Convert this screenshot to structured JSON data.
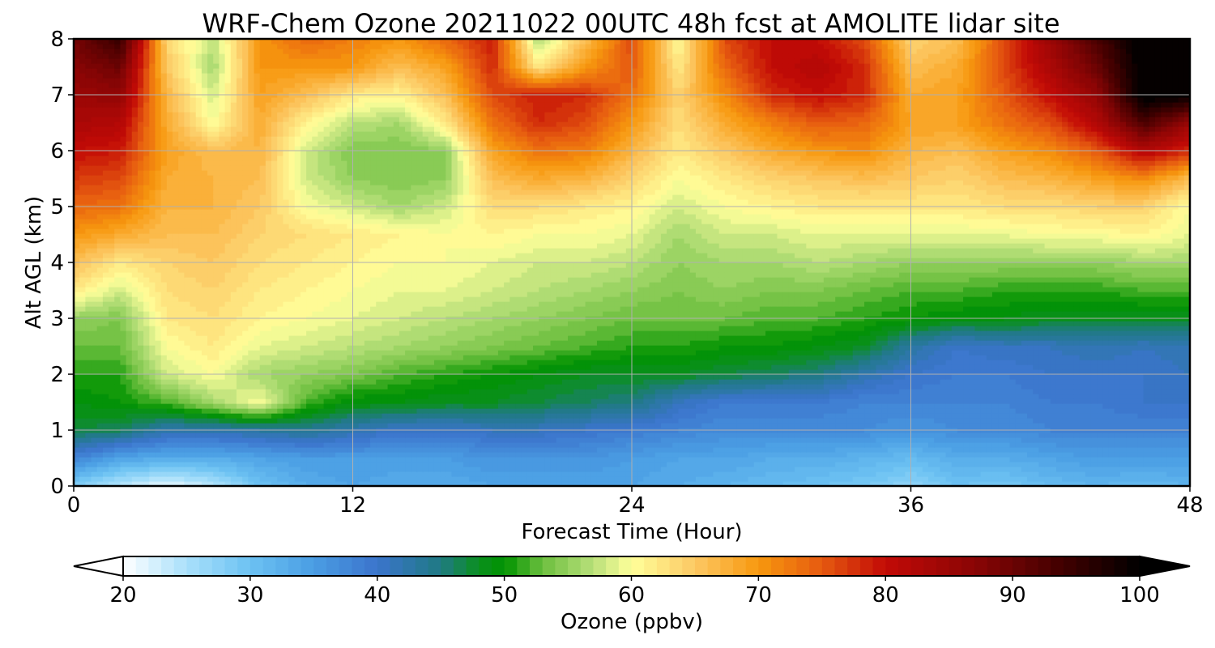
{
  "chart_data": {
    "type": "heatmap",
    "title": "WRF-Chem Ozone  20211022 00UTC 48h fcst at AMOLITE lidar site",
    "xlabel": "Forecast Time (Hour)",
    "ylabel": "Alt AGL (km)",
    "xlim": [
      0,
      48
    ],
    "ylim": [
      0,
      8
    ],
    "xticks": [
      0,
      12,
      24,
      36,
      48
    ],
    "yticks": [
      0,
      1,
      2,
      3,
      4,
      5,
      6,
      7,
      8
    ],
    "grid": true,
    "x": [
      0,
      2,
      4,
      6,
      8,
      10,
      12,
      14,
      16,
      18,
      20,
      22,
      24,
      26,
      28,
      30,
      32,
      34,
      36,
      38,
      40,
      42,
      44,
      46,
      48
    ],
    "y": [
      0,
      0.5,
      1,
      1.5,
      2,
      2.5,
      3,
      3.5,
      4,
      4.5,
      5,
      5.5,
      6,
      6.5,
      7,
      7.5,
      8
    ],
    "z": [
      [
        28,
        24,
        21,
        24,
        30,
        33,
        34,
        33,
        33,
        34,
        34,
        34,
        34,
        33,
        32,
        31,
        30,
        29,
        27,
        30,
        29,
        31,
        32,
        31,
        32
      ],
      [
        38,
        34,
        33,
        33,
        34,
        35,
        35,
        35,
        35,
        36,
        36,
        36,
        35,
        34,
        34,
        33,
        33,
        32,
        31,
        33,
        33,
        34,
        35,
        35,
        35
      ],
      [
        47,
        46,
        42,
        42,
        43,
        44,
        42,
        40,
        40,
        41,
        41,
        40,
        39,
        38,
        37,
        37,
        37,
        37,
        36,
        37,
        37,
        38,
        38,
        38,
        38
      ],
      [
        49,
        50,
        52,
        56,
        60,
        52,
        49,
        49,
        48,
        48,
        47,
        46,
        45,
        41,
        39,
        39,
        39,
        38,
        38,
        38,
        38,
        39,
        39,
        40,
        40
      ],
      [
        51,
        51,
        58,
        60,
        56,
        55,
        54,
        52,
        51,
        50,
        49,
        48,
        48,
        48,
        47,
        46,
        45,
        42,
        40,
        39,
        39,
        40,
        40,
        40,
        41
      ],
      [
        53,
        53,
        60,
        62,
        59,
        58,
        57,
        56,
        55,
        54,
        53,
        52,
        51,
        51,
        50,
        50,
        49,
        48,
        43,
        40,
        41,
        41,
        42,
        41,
        42
      ],
      [
        55,
        54,
        62,
        63,
        61,
        60,
        59,
        58,
        57,
        56,
        55,
        54,
        53,
        53,
        53,
        52,
        52,
        51,
        50,
        49,
        49,
        48,
        48,
        48,
        48
      ],
      [
        62,
        58,
        63,
        64,
        62,
        61,
        60,
        59,
        59,
        58,
        57,
        56,
        55,
        54,
        55,
        54,
        54,
        53,
        52,
        52,
        51,
        51,
        51,
        52,
        52
      ],
      [
        66,
        62,
        64,
        65,
        63,
        62,
        61,
        60,
        60,
        59,
        58,
        58,
        57,
        55,
        56,
        56,
        57,
        56,
        55,
        55,
        55,
        55,
        55,
        56,
        56
      ],
      [
        70,
        68,
        66,
        66,
        64,
        63,
        62,
        61,
        60,
        61,
        60,
        60,
        59,
        56,
        58,
        58,
        59,
        59,
        59,
        59,
        59,
        60,
        60,
        61,
        59
      ],
      [
        74,
        73,
        67,
        67,
        65,
        60,
        58,
        56,
        58,
        63,
        63,
        62,
        61,
        58,
        60,
        61,
        62,
        62,
        62,
        62,
        63,
        63,
        64,
        64,
        60
      ],
      [
        77,
        76,
        68,
        67,
        66,
        58,
        55,
        54,
        55,
        66,
        68,
        67,
        64,
        60,
        62,
        64,
        65,
        66,
        65,
        64,
        66,
        67,
        69,
        71,
        66
      ],
      [
        80,
        79,
        69,
        66,
        67,
        58,
        54,
        54,
        55,
        69,
        73,
        72,
        67,
        62,
        65,
        68,
        70,
        71,
        67,
        66,
        69,
        71,
        75,
        82,
        78
      ],
      [
        83,
        82,
        68,
        60,
        68,
        61,
        57,
        56,
        62,
        73,
        78,
        76,
        70,
        63,
        68,
        72,
        75,
        74,
        69,
        69,
        73,
        76,
        82,
        93,
        85
      ],
      [
        85,
        86,
        67,
        58,
        69,
        66,
        62,
        61,
        66,
        76,
        79,
        78,
        73,
        64,
        71,
        78,
        80,
        78,
        68,
        69,
        75,
        80,
        86,
        101,
        100
      ],
      [
        87,
        90,
        65,
        56,
        70,
        70,
        70,
        66,
        69,
        78,
        62,
        70,
        75,
        62,
        74,
        80,
        82,
        78,
        66,
        68,
        76,
        83,
        90,
        101,
        101
      ],
      [
        89,
        95,
        64,
        57,
        70,
        74,
        72,
        70,
        74,
        79,
        56,
        66,
        76,
        60,
        76,
        80,
        80,
        76,
        64,
        66,
        76,
        85,
        93,
        101,
        101
      ]
    ],
    "colorbar": {
      "label": "Ozone  (ppbv)",
      "min": 20,
      "max": 100,
      "ticks": [
        20,
        30,
        40,
        50,
        60,
        70,
        80,
        90,
        100
      ],
      "extend": "both",
      "levels": 80,
      "stops": [
        [
          20,
          "#ffffff"
        ],
        [
          25,
          "#a9e0fb"
        ],
        [
          30,
          "#6cc2f2"
        ],
        [
          35,
          "#4a9de3"
        ],
        [
          40,
          "#3b74cc"
        ],
        [
          45,
          "#1f7a83"
        ],
        [
          48,
          "#0a8f1e"
        ],
        [
          50,
          "#009300"
        ],
        [
          53,
          "#6cbf3e"
        ],
        [
          57,
          "#b9e07a"
        ],
        [
          60,
          "#ffff9a"
        ],
        [
          65,
          "#fcc863"
        ],
        [
          70,
          "#f7980e"
        ],
        [
          75,
          "#e65a10"
        ],
        [
          80,
          "#c20a06"
        ],
        [
          87,
          "#8a0505"
        ],
        [
          94,
          "#400000"
        ],
        [
          100,
          "#000000"
        ]
      ]
    }
  }
}
